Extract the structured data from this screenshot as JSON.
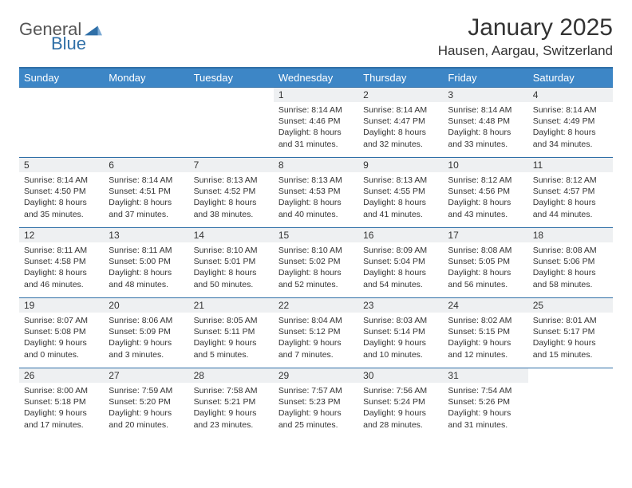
{
  "brand": {
    "word1": "General",
    "word2": "Blue",
    "triangle_color": "#2f6fa7"
  },
  "title": "January 2025",
  "location": "Hausen, Aargau, Switzerland",
  "colors": {
    "header_row_bg": "#3d86c6",
    "header_row_text": "#ffffff",
    "rule": "#2f6fa7",
    "daynum_bg": "#eef0f2",
    "text": "#333333",
    "page_bg": "#ffffff"
  },
  "typography": {
    "month_title_pt": 30,
    "location_pt": 17,
    "weekday_pt": 13,
    "daynum_pt": 12,
    "body_pt": 10.5
  },
  "weekdays": [
    "Sunday",
    "Monday",
    "Tuesday",
    "Wednesday",
    "Thursday",
    "Friday",
    "Saturday"
  ],
  "weeks": [
    [
      null,
      null,
      null,
      {
        "n": "1",
        "sunrise": "8:14 AM",
        "sunset": "4:46 PM",
        "dl": "8 hours and 31 minutes."
      },
      {
        "n": "2",
        "sunrise": "8:14 AM",
        "sunset": "4:47 PM",
        "dl": "8 hours and 32 minutes."
      },
      {
        "n": "3",
        "sunrise": "8:14 AM",
        "sunset": "4:48 PM",
        "dl": "8 hours and 33 minutes."
      },
      {
        "n": "4",
        "sunrise": "8:14 AM",
        "sunset": "4:49 PM",
        "dl": "8 hours and 34 minutes."
      }
    ],
    [
      {
        "n": "5",
        "sunrise": "8:14 AM",
        "sunset": "4:50 PM",
        "dl": "8 hours and 35 minutes."
      },
      {
        "n": "6",
        "sunrise": "8:14 AM",
        "sunset": "4:51 PM",
        "dl": "8 hours and 37 minutes."
      },
      {
        "n": "7",
        "sunrise": "8:13 AM",
        "sunset": "4:52 PM",
        "dl": "8 hours and 38 minutes."
      },
      {
        "n": "8",
        "sunrise": "8:13 AM",
        "sunset": "4:53 PM",
        "dl": "8 hours and 40 minutes."
      },
      {
        "n": "9",
        "sunrise": "8:13 AM",
        "sunset": "4:55 PM",
        "dl": "8 hours and 41 minutes."
      },
      {
        "n": "10",
        "sunrise": "8:12 AM",
        "sunset": "4:56 PM",
        "dl": "8 hours and 43 minutes."
      },
      {
        "n": "11",
        "sunrise": "8:12 AM",
        "sunset": "4:57 PM",
        "dl": "8 hours and 44 minutes."
      }
    ],
    [
      {
        "n": "12",
        "sunrise": "8:11 AM",
        "sunset": "4:58 PM",
        "dl": "8 hours and 46 minutes."
      },
      {
        "n": "13",
        "sunrise": "8:11 AM",
        "sunset": "5:00 PM",
        "dl": "8 hours and 48 minutes."
      },
      {
        "n": "14",
        "sunrise": "8:10 AM",
        "sunset": "5:01 PM",
        "dl": "8 hours and 50 minutes."
      },
      {
        "n": "15",
        "sunrise": "8:10 AM",
        "sunset": "5:02 PM",
        "dl": "8 hours and 52 minutes."
      },
      {
        "n": "16",
        "sunrise": "8:09 AM",
        "sunset": "5:04 PM",
        "dl": "8 hours and 54 minutes."
      },
      {
        "n": "17",
        "sunrise": "8:08 AM",
        "sunset": "5:05 PM",
        "dl": "8 hours and 56 minutes."
      },
      {
        "n": "18",
        "sunrise": "8:08 AM",
        "sunset": "5:06 PM",
        "dl": "8 hours and 58 minutes."
      }
    ],
    [
      {
        "n": "19",
        "sunrise": "8:07 AM",
        "sunset": "5:08 PM",
        "dl": "9 hours and 0 minutes."
      },
      {
        "n": "20",
        "sunrise": "8:06 AM",
        "sunset": "5:09 PM",
        "dl": "9 hours and 3 minutes."
      },
      {
        "n": "21",
        "sunrise": "8:05 AM",
        "sunset": "5:11 PM",
        "dl": "9 hours and 5 minutes."
      },
      {
        "n": "22",
        "sunrise": "8:04 AM",
        "sunset": "5:12 PM",
        "dl": "9 hours and 7 minutes."
      },
      {
        "n": "23",
        "sunrise": "8:03 AM",
        "sunset": "5:14 PM",
        "dl": "9 hours and 10 minutes."
      },
      {
        "n": "24",
        "sunrise": "8:02 AM",
        "sunset": "5:15 PM",
        "dl": "9 hours and 12 minutes."
      },
      {
        "n": "25",
        "sunrise": "8:01 AM",
        "sunset": "5:17 PM",
        "dl": "9 hours and 15 minutes."
      }
    ],
    [
      {
        "n": "26",
        "sunrise": "8:00 AM",
        "sunset": "5:18 PM",
        "dl": "9 hours and 17 minutes."
      },
      {
        "n": "27",
        "sunrise": "7:59 AM",
        "sunset": "5:20 PM",
        "dl": "9 hours and 20 minutes."
      },
      {
        "n": "28",
        "sunrise": "7:58 AM",
        "sunset": "5:21 PM",
        "dl": "9 hours and 23 minutes."
      },
      {
        "n": "29",
        "sunrise": "7:57 AM",
        "sunset": "5:23 PM",
        "dl": "9 hours and 25 minutes."
      },
      {
        "n": "30",
        "sunrise": "7:56 AM",
        "sunset": "5:24 PM",
        "dl": "9 hours and 28 minutes."
      },
      {
        "n": "31",
        "sunrise": "7:54 AM",
        "sunset": "5:26 PM",
        "dl": "9 hours and 31 minutes."
      },
      null
    ]
  ],
  "labels": {
    "sunrise": "Sunrise:",
    "sunset": "Sunset:",
    "daylight": "Daylight:"
  }
}
